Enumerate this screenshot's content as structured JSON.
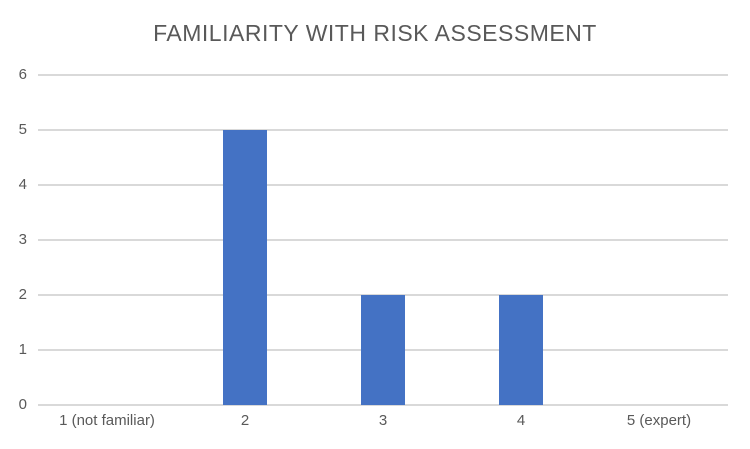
{
  "chart_data": {
    "type": "bar",
    "title": "FAMILIARITY WITH RISK ASSESSMENT",
    "categories": [
      "1 (not familiar)",
      "2",
      "3",
      "4",
      "5 (expert)"
    ],
    "values": [
      0,
      5,
      2,
      2,
      0
    ],
    "xlabel": "",
    "ylabel": "",
    "ylim": [
      0,
      6
    ],
    "yticks": [
      0,
      1,
      2,
      3,
      4,
      5,
      6
    ],
    "grid": true,
    "legend_position": "none",
    "colors": {
      "bar": "#4472C4",
      "gridline": "#D9D9D9",
      "text": "#595959",
      "background": "#FFFFFF"
    }
  }
}
